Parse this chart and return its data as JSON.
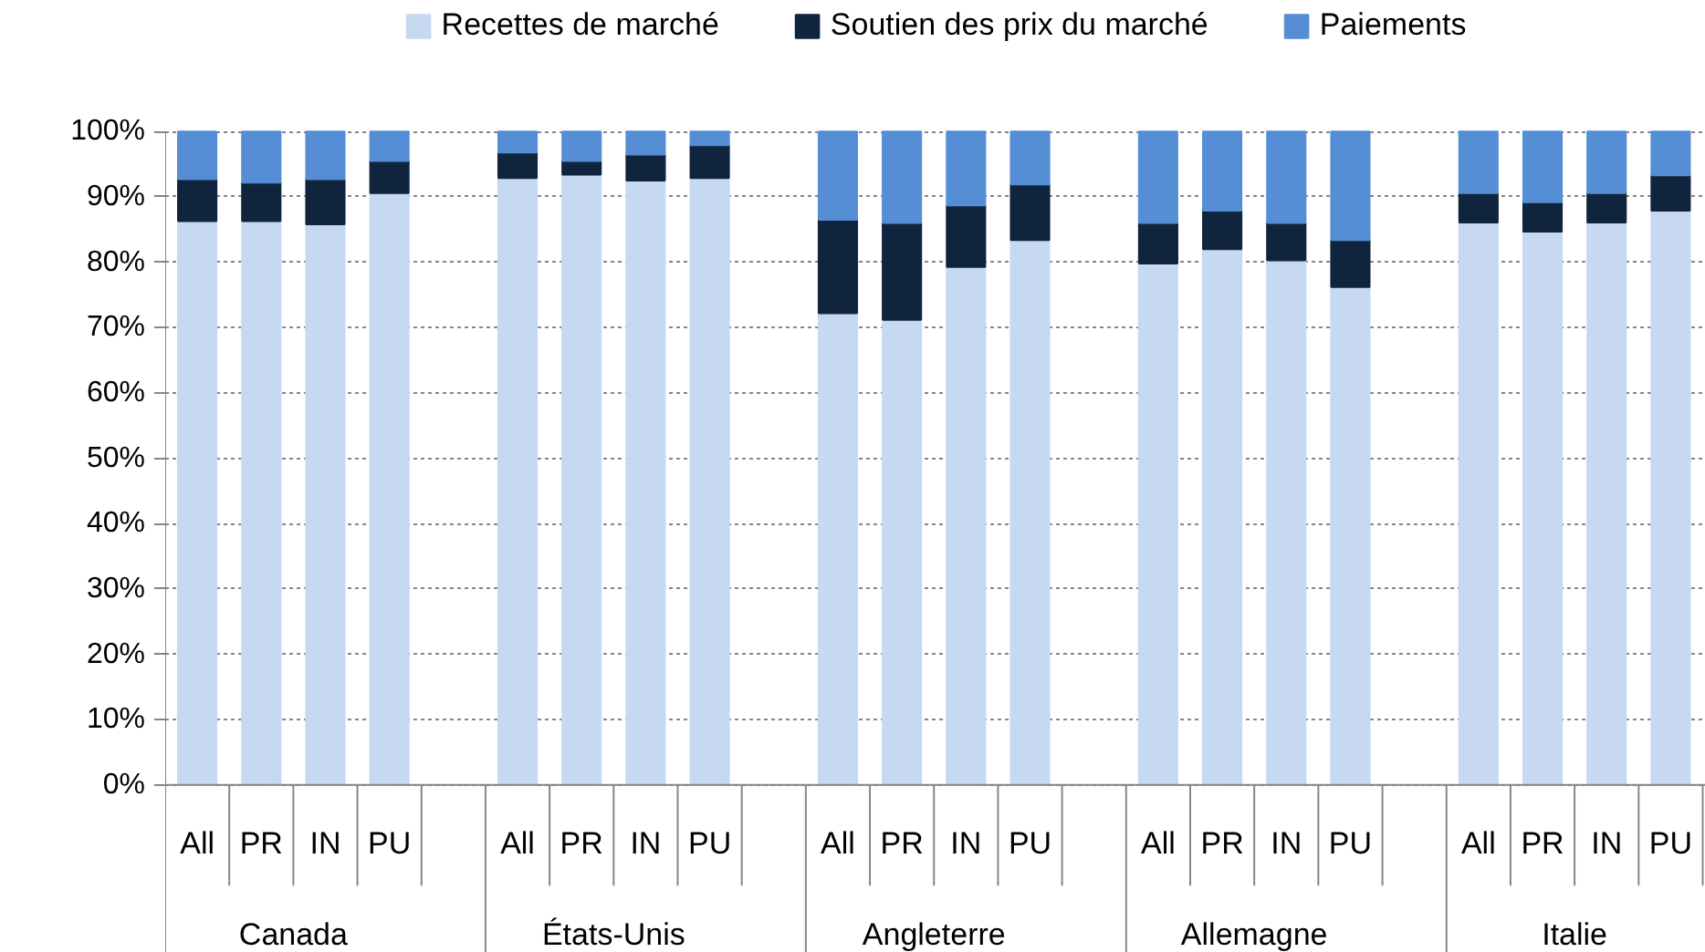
{
  "chart_data": {
    "type": "bar",
    "stacked": true,
    "categories": [
      "All",
      "PR",
      "IN",
      "PU",
      null,
      "All",
      "PR",
      "IN",
      "PU",
      null,
      "All",
      "PR",
      "IN",
      "PU",
      null,
      "All",
      "PR",
      "IN",
      "PU",
      null,
      "All",
      "PR",
      "IN",
      "PU"
    ],
    "series": [
      {
        "name": "Recettes de marché",
        "color": "#c6d9f0",
        "values": [
          86.3,
          86.3,
          85.8,
          90.6,
          null,
          92.9,
          93.4,
          92.5,
          92.9,
          null,
          72.2,
          71.2,
          79.3,
          83.4,
          null,
          79.8,
          82.0,
          80.3,
          76.2,
          null,
          86.1,
          84.7,
          86.1,
          87.9
        ]
      },
      {
        "name": "Soutien des prix du marché",
        "color": "#10243e",
        "values": [
          6.4,
          5.9,
          6.9,
          4.9,
          null,
          3.9,
          2.1,
          4.0,
          5.0,
          null,
          14.3,
          14.8,
          9.4,
          8.5,
          null,
          6.2,
          5.9,
          5.7,
          7.2,
          null,
          4.5,
          4.5,
          4.5,
          5.4
        ]
      },
      {
        "name": "Paiements",
        "color": "#558ed5",
        "values": [
          7.3,
          7.8,
          7.3,
          4.5,
          null,
          3.2,
          4.5,
          3.5,
          2.1,
          null,
          13.5,
          14.0,
          11.3,
          8.1,
          null,
          14.0,
          12.1,
          14.0,
          16.6,
          null,
          9.4,
          10.8,
          9.4,
          6.7
        ]
      }
    ],
    "annotations": [
      "Canada",
      "États-Unis",
      "Angleterre",
      "Allemagne",
      "Italie"
    ],
    "ylim": [
      0,
      100
    ],
    "yticks": [
      {
        "value": 0,
        "label": "0%"
      },
      {
        "value": 10,
        "label": "10%"
      },
      {
        "value": 20,
        "label": "20%"
      },
      {
        "value": 30,
        "label": "30%"
      },
      {
        "value": 40,
        "label": "40%"
      },
      {
        "value": 50,
        "label": "50%"
      },
      {
        "value": 60,
        "label": "60%"
      },
      {
        "value": 70,
        "label": "70%"
      },
      {
        "value": 80,
        "label": "80%"
      },
      {
        "value": 90,
        "label": "90%"
      },
      {
        "value": 100,
        "label": "100%"
      }
    ],
    "grid": "y",
    "legend": "top"
  }
}
